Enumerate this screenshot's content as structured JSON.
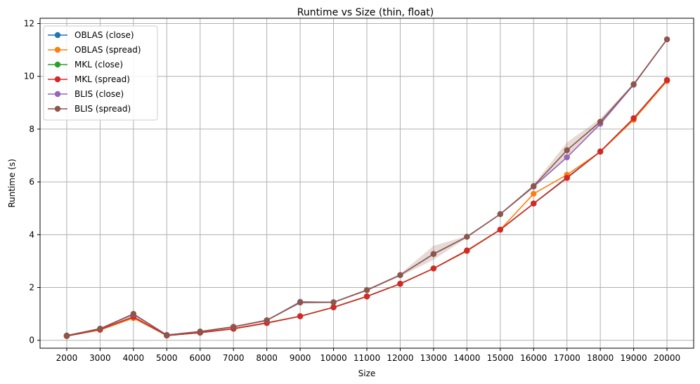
{
  "chart_data": {
    "type": "line",
    "title": "Runtime vs Size (thin, float)",
    "xlabel": "Size",
    "ylabel": "Runtime (s)",
    "x": [
      2000,
      3000,
      4000,
      5000,
      6000,
      7000,
      8000,
      9000,
      10000,
      11000,
      12000,
      13000,
      14000,
      15000,
      16000,
      17000,
      18000,
      19000,
      20000
    ],
    "xlim": [
      1200,
      20800
    ],
    "ylim": [
      -0.3,
      12.2
    ],
    "yticks": [
      0,
      2,
      4,
      6,
      8,
      10,
      12
    ],
    "grid": true,
    "legend_position": "top-left",
    "series": [
      {
        "name": "OBLAS (close)",
        "color": "#1f77b4",
        "values": [
          0.16,
          0.4,
          0.88,
          0.18,
          0.29,
          0.44,
          0.66,
          0.91,
          1.25,
          1.66,
          2.14,
          2.72,
          3.4,
          4.19,
          5.18,
          6.17,
          7.15,
          8.41,
          9.85
        ]
      },
      {
        "name": "OBLAS (spread)",
        "color": "#ff7f0e",
        "values": [
          0.16,
          0.39,
          0.84,
          0.18,
          0.29,
          0.43,
          0.65,
          0.91,
          1.25,
          1.66,
          2.14,
          2.72,
          3.38,
          4.19,
          5.55,
          6.27,
          7.14,
          8.35,
          9.82
        ]
      },
      {
        "name": "MKL (close)",
        "color": "#2ca02c",
        "values": [
          0.16,
          0.41,
          0.89,
          0.18,
          0.29,
          0.44,
          0.66,
          0.91,
          1.25,
          1.66,
          2.14,
          2.72,
          3.4,
          4.19,
          5.18,
          6.15,
          7.15,
          8.41,
          9.86
        ]
      },
      {
        "name": "MKL (spread)",
        "color": "#d62728",
        "values": [
          0.16,
          0.41,
          0.89,
          0.18,
          0.29,
          0.44,
          0.66,
          0.91,
          1.25,
          1.66,
          2.14,
          2.72,
          3.4,
          4.19,
          5.18,
          6.15,
          7.15,
          8.41,
          9.86
        ]
      },
      {
        "name": "BLIS (close)",
        "color": "#9467bd",
        "values": [
          0.18,
          0.44,
          0.98,
          0.2,
          0.33,
          0.51,
          0.75,
          1.46,
          1.44,
          1.9,
          2.47,
          3.27,
          3.92,
          4.78,
          5.82,
          6.93,
          8.2,
          9.68,
          11.4
        ]
      },
      {
        "name": "BLIS (spread)",
        "color": "#8c564b",
        "values": [
          0.18,
          0.44,
          1.0,
          0.2,
          0.33,
          0.51,
          0.76,
          1.43,
          1.44,
          1.9,
          2.47,
          3.27,
          3.92,
          4.78,
          5.84,
          7.2,
          8.28,
          9.7,
          11.4
        ],
        "band_upper": [
          0.19,
          0.46,
          1.03,
          0.21,
          0.35,
          0.54,
          0.79,
          1.47,
          1.47,
          1.94,
          2.52,
          3.58,
          3.95,
          4.8,
          5.9,
          7.5,
          8.4,
          9.74,
          11.45
        ],
        "band_lower": [
          0.17,
          0.42,
          0.95,
          0.19,
          0.31,
          0.48,
          0.72,
          1.39,
          1.41,
          1.86,
          2.42,
          3.05,
          3.88,
          4.75,
          5.77,
          6.9,
          8.15,
          9.66,
          11.35
        ]
      }
    ]
  }
}
